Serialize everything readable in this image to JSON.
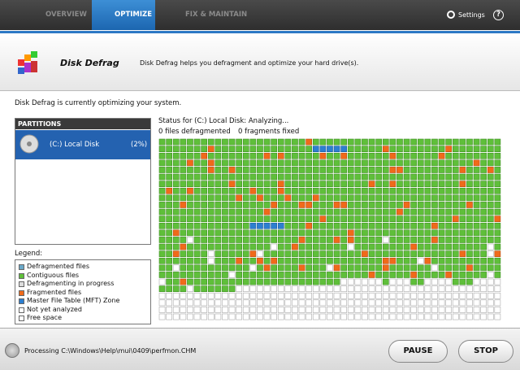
{
  "tabs": [
    "OVERVIEW",
    "OPTIMIZE",
    "FIX & MAINTAIN"
  ],
  "settings": "Settings",
  "help": "?",
  "header": {
    "title": "Disk Defrag",
    "description": "Disk Defrag helps you defragment and optimize your hard drive(s)."
  },
  "status_message": "Disk Defrag is currently optimizing your system.",
  "partitions": {
    "title": "PARTITIONS",
    "items": [
      {
        "name": "(C:) Local Disk",
        "percent": "(2%)"
      }
    ]
  },
  "legend": {
    "title": "Legend:",
    "items": [
      "Defragmented files",
      "Contiguous files",
      "Defragmenting in progress",
      "Fragmented files",
      "Master File Table (MFT) Zone",
      "Not yet analyzed",
      "Free space"
    ]
  },
  "status": {
    "line": "Status for (C:) Local Disk: Analyzing...",
    "files": "0 files defragmented",
    "fragments": "0 fragments fixed"
  },
  "footer": {
    "processing": "Processing C:\\Windows\\Help\\mui\\0409\\perfmon.CHM",
    "buttons": [
      "PAUSE",
      "STOP"
    ]
  }
}
